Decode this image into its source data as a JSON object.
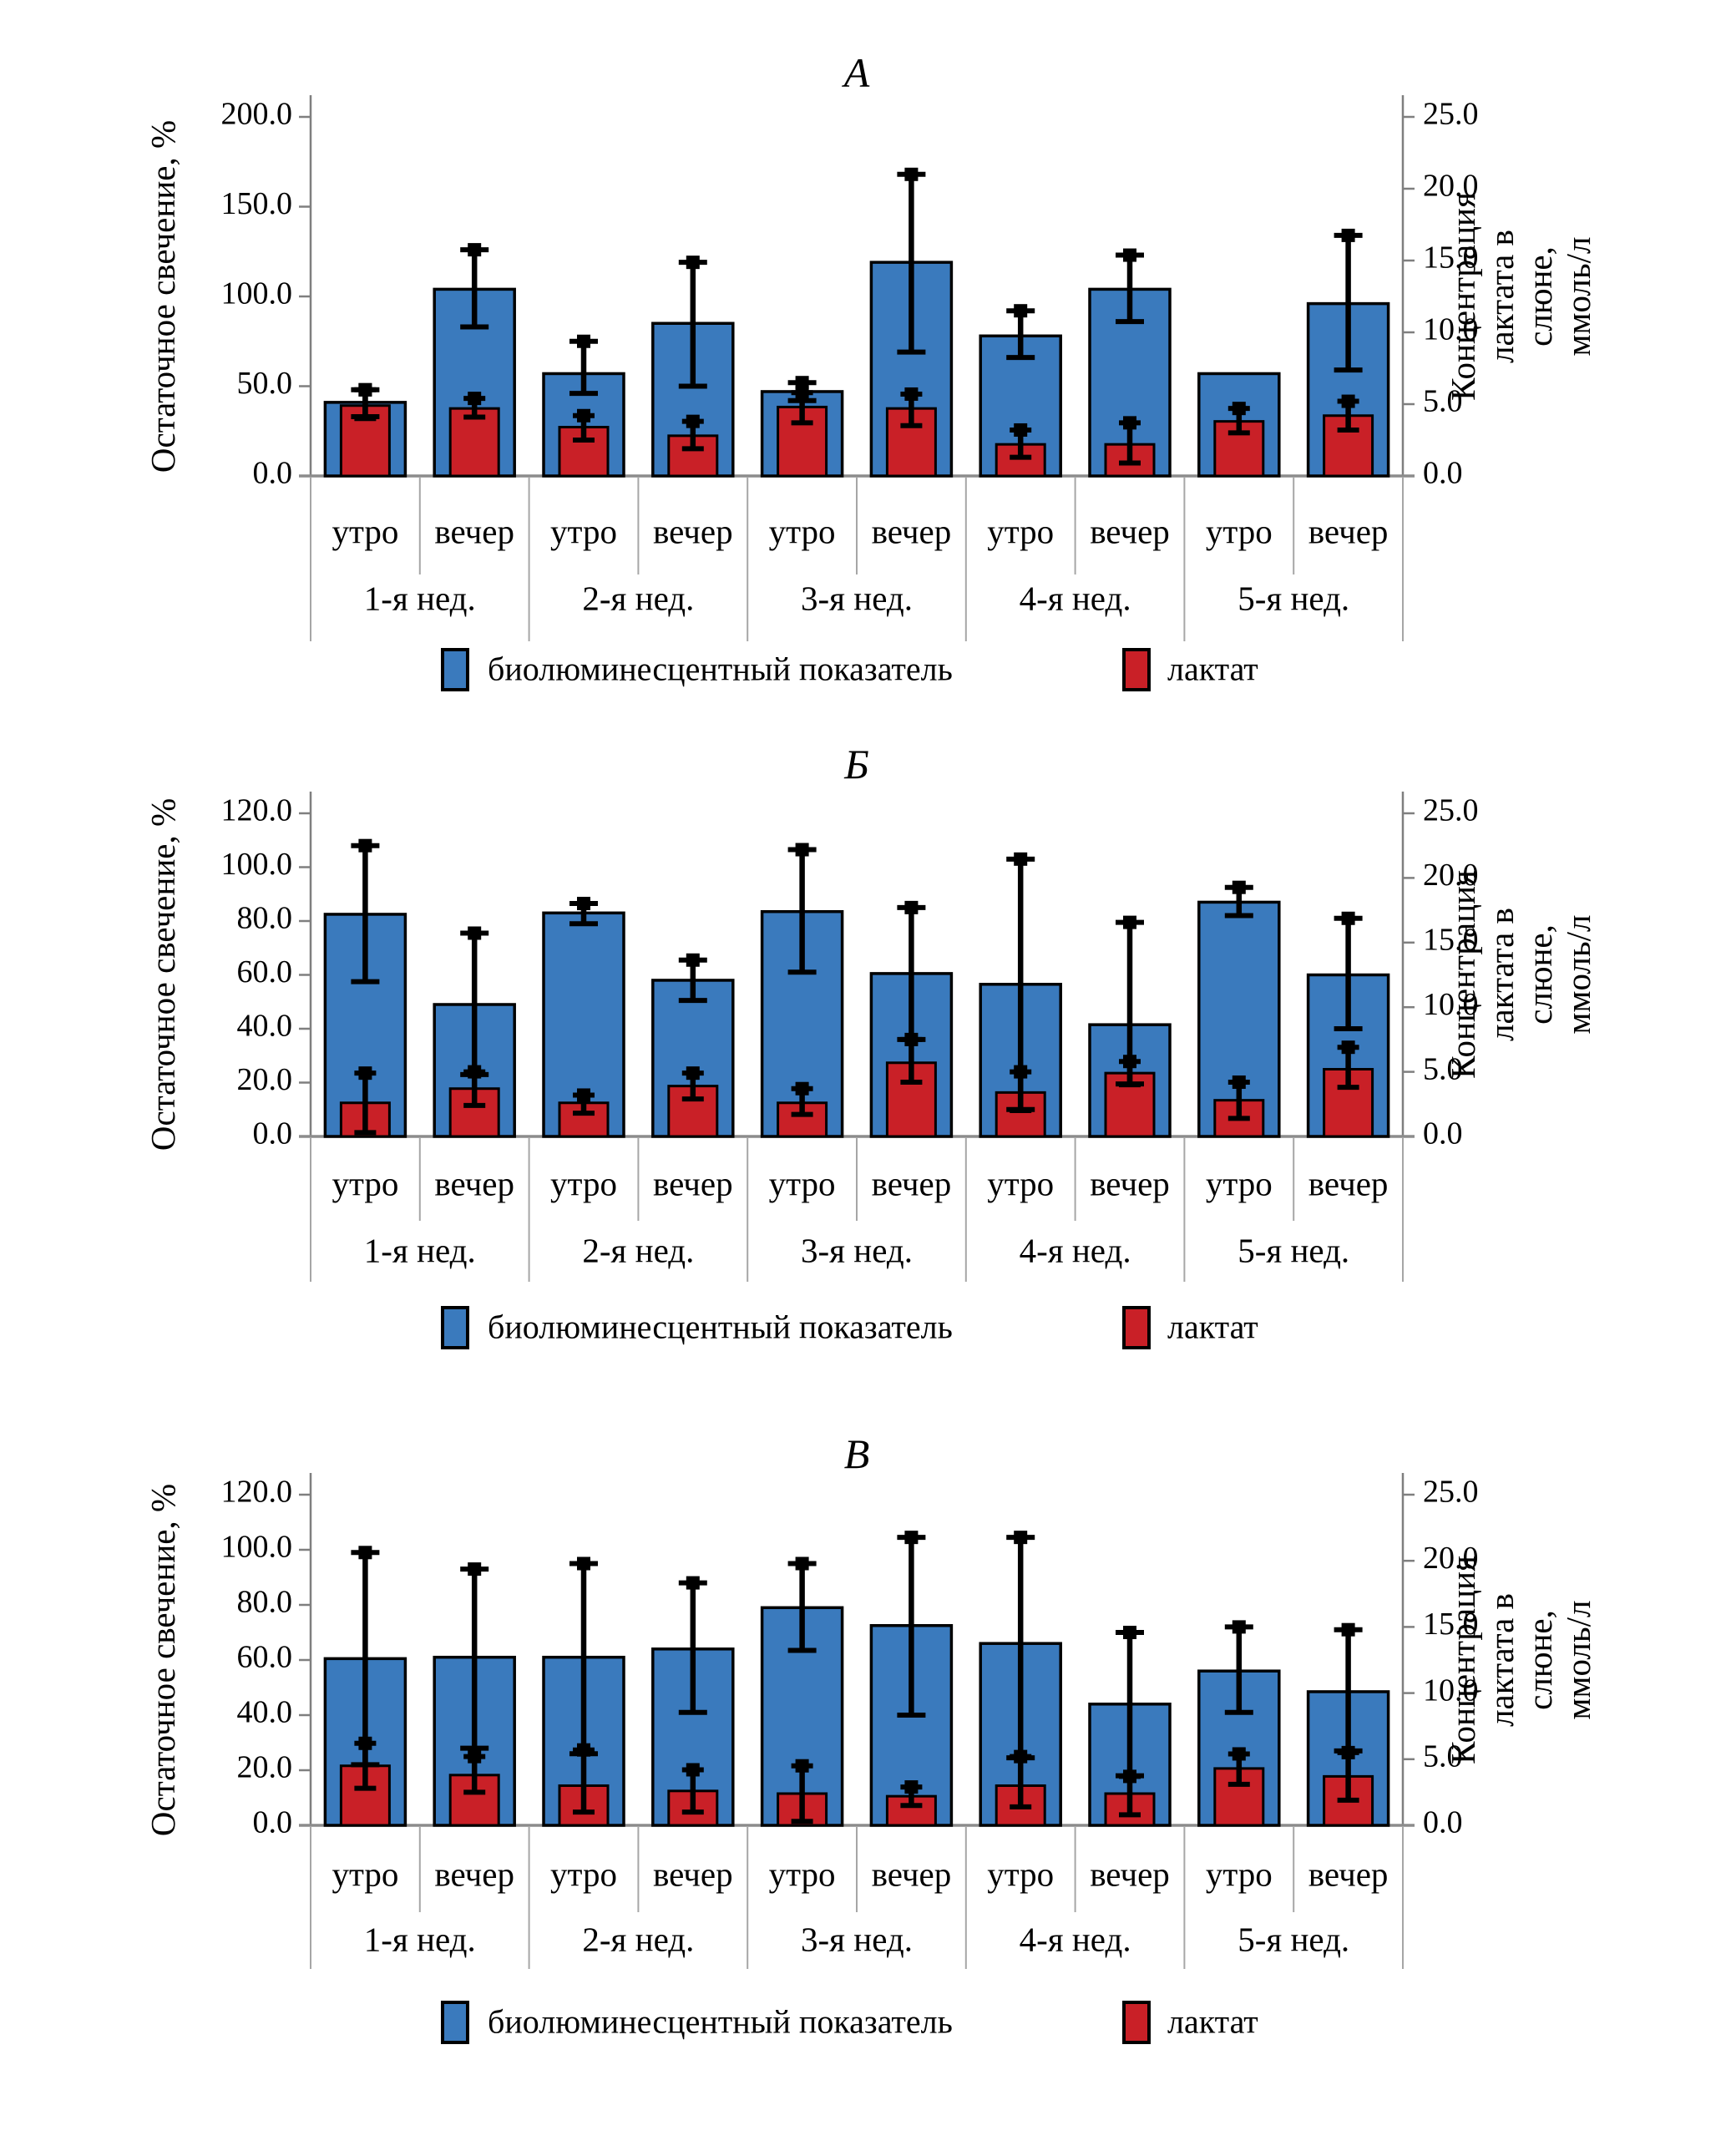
{
  "figure": {
    "background": "#ffffff"
  },
  "colors": {
    "bioluminescent": "#3a7abd",
    "lactate": "#c92027",
    "axis": "#7f7f7f",
    "baseline": "#8c8c8c",
    "separator": "#a6a6a6",
    "error": "#000000"
  },
  "legend": {
    "items": [
      {
        "label": "биолюминесцентный показатель",
        "color": "#3a7abd"
      },
      {
        "label": "лактат",
        "color": "#c92027"
      }
    ]
  },
  "chart_data": [
    {
      "type": "bar",
      "title": "А",
      "left_axis": {
        "label": "Остаточное свечение, %",
        "min": 0,
        "max": 200,
        "step": 50
      },
      "right_axis": {
        "label": "Концентрация лактата в\nслюне, ммоль/л",
        "min": 0,
        "max": 25,
        "step": 5
      },
      "group_labels": [
        "1-я нед.",
        "2-я нед.",
        "3-я нед.",
        "4-я нед.",
        "5-я нед."
      ],
      "sub_labels": [
        "утро",
        "вечер"
      ],
      "series": [
        {
          "name": "биолюминесцентный показатель",
          "axis": "left",
          "color": "#3a7abd",
          "values": [
            41,
            104,
            57,
            85,
            47,
            119,
            78,
            104,
            57,
            96
          ],
          "err_low": [
            33,
            83,
            46,
            50,
            42,
            69,
            66,
            86,
            null,
            59
          ],
          "err_high": [
            48,
            126,
            75,
            119,
            52,
            168,
            92,
            123,
            null,
            134
          ]
        },
        {
          "name": "лактат",
          "axis": "right",
          "color": "#c92027",
          "values": [
            4.9,
            4.7,
            3.4,
            2.8,
            4.8,
            4.7,
            2.2,
            2.2,
            3.8,
            4.2
          ],
          "err_low": [
            4.0,
            4.1,
            2.5,
            1.9,
            3.7,
            3.5,
            1.3,
            0.9,
            3.0,
            3.2
          ],
          "err_high": [
            6.0,
            5.4,
            4.2,
            3.8,
            5.8,
            5.7,
            3.2,
            3.7,
            4.7,
            5.2
          ]
        }
      ]
    },
    {
      "type": "bar",
      "title": "Б",
      "left_axis": {
        "label": "Остаточное свечение, %",
        "min": 0,
        "max": 120,
        "step": 20
      },
      "right_axis": {
        "label": "Концентрация лактата в\nслюне, ммоль/л",
        "min": 0,
        "max": 25,
        "step": 5
      },
      "group_labels": [
        "1-я нед.",
        "2-я нед.",
        "3-я нед.",
        "4-я нед.",
        "5-я нед."
      ],
      "sub_labels": [
        "утро",
        "вечер"
      ],
      "series": [
        {
          "name": "биолюминесцентный показатель",
          "axis": "left",
          "color": "#3a7abd",
          "values": [
            82.5,
            49,
            83,
            58,
            83.5,
            60.5,
            56.5,
            41.5,
            87,
            60
          ],
          "err_low": [
            57.5,
            23,
            79,
            50.5,
            61,
            36,
            10,
            19.5,
            82,
            40
          ],
          "err_high": [
            108,
            75.5,
            86.5,
            65.5,
            106.5,
            85,
            103,
            79.5,
            92.5,
            81
          ]
        },
        {
          "name": "лактат",
          "axis": "right",
          "color": "#c92027",
          "values": [
            2.6,
            3.7,
            2.6,
            3.9,
            2.6,
            5.7,
            3.4,
            4.9,
            2.8,
            5.2
          ],
          "err_low": [
            0.3,
            2.4,
            1.8,
            2.9,
            1.7,
            4.2,
            2.0,
            4.0,
            1.4,
            3.8
          ],
          "err_high": [
            4.9,
            5.0,
            3.2,
            4.9,
            3.7,
            7.5,
            5.0,
            5.8,
            4.2,
            6.9
          ]
        }
      ]
    },
    {
      "type": "bar",
      "title": "В",
      "left_axis": {
        "label": "Остаточное свечение, %",
        "min": 0,
        "max": 120,
        "step": 20
      },
      "right_axis": {
        "label": "Концентрация лактата в\nслюне, ммоль/л",
        "min": 0,
        "max": 25,
        "step": 5
      },
      "group_labels": [
        "1-я нед.",
        "2-я нед.",
        "3-я нед.",
        "4-я нед.",
        "5-я нед."
      ],
      "sub_labels": [
        "утро",
        "вечер"
      ],
      "series": [
        {
          "name": "биолюминесцентный показатель",
          "axis": "left",
          "color": "#3a7abd",
          "values": [
            60.5,
            61,
            61,
            64,
            79,
            72.5,
            66,
            44,
            56,
            48.5
          ],
          "err_low": [
            22,
            28,
            26,
            41,
            63.5,
            40,
            24.5,
            18,
            41,
            27
          ],
          "err_high": [
            99,
            93,
            95,
            88,
            95,
            104.5,
            104.5,
            70,
            72,
            71
          ]
        },
        {
          "name": "лактат",
          "axis": "right",
          "color": "#c92027",
          "values": [
            4.5,
            3.8,
            3.0,
            2.6,
            2.4,
            2.2,
            3.0,
            2.4,
            4.3,
            3.7
          ],
          "err_low": [
            2.8,
            2.5,
            1.0,
            1.0,
            0.3,
            1.5,
            1.4,
            0.8,
            3.1,
            1.9
          ],
          "err_high": [
            6.2,
            5.2,
            5.7,
            4.2,
            4.5,
            2.9,
            5.2,
            3.7,
            5.4,
            5.5
          ]
        }
      ]
    }
  ]
}
